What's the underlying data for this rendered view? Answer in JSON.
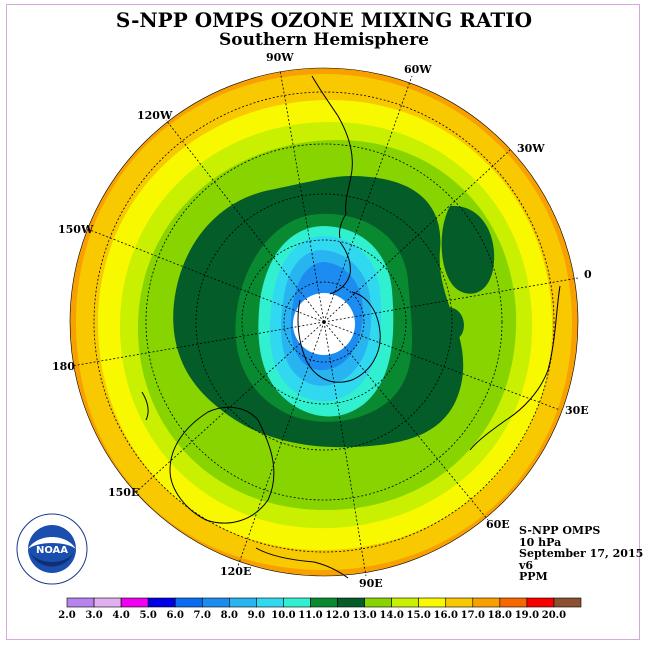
{
  "title": "S-NPP OMPS OZONE MIXING RATIO",
  "subtitle": "Southern Hemisphere",
  "longitude_labels": [
    "90W",
    "60W",
    "30W",
    "0",
    "30E",
    "60E",
    "90E",
    "120E",
    "150E",
    "180",
    "150W",
    "120W"
  ],
  "info": {
    "instrument": "S-NPP OMPS",
    "pressure": "10 hPa",
    "date": "September 17, 2015",
    "version": "v6",
    "unit": "PPM"
  },
  "logo": {
    "name": "NOAA",
    "text": "NOAA"
  },
  "colorbar": {
    "ticks": [
      "2.0",
      "3.0",
      "4.0",
      "5.0",
      "6.0",
      "7.0",
      "8.0",
      "9.0",
      "10.0",
      "11.0",
      "12.0",
      "13.0",
      "14.0",
      "15.0",
      "16.0",
      "17.0",
      "18.0",
      "19.0",
      "20.0"
    ],
    "colors": [
      "#b784ee",
      "#e0b0f0",
      "#f000f0",
      "#0000e6",
      "#0a6cf0",
      "#1c8cf0",
      "#28b4f0",
      "#30d8f0",
      "#30f0d0",
      "#0a8a30",
      "#045c28",
      "#88d400",
      "#c8f000",
      "#f8f800",
      "#f8c800",
      "#f8a000",
      "#f86800",
      "#f80000",
      "#8a5030"
    ]
  },
  "colors": {
    "polar_night": "#ffffff",
    "coastline": "#000000",
    "grid": "#000000"
  }
}
